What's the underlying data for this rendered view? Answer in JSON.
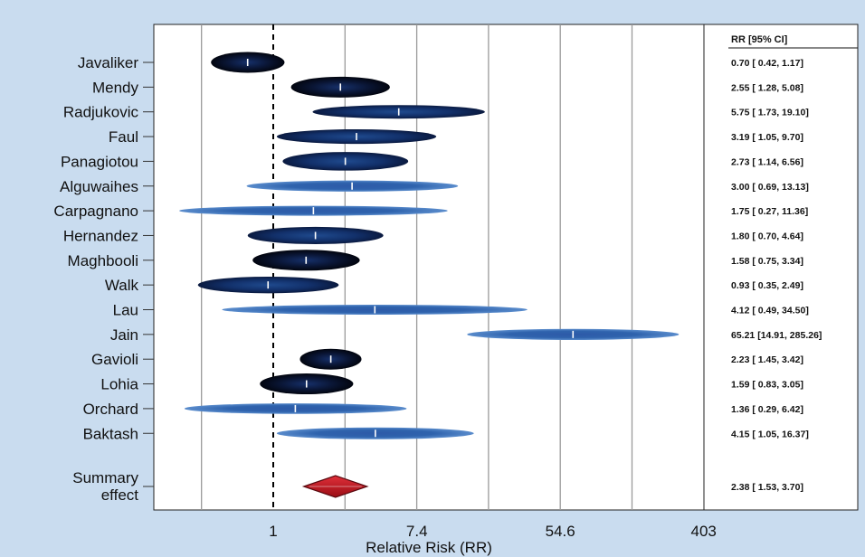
{
  "chart_data": {
    "type": "forest",
    "xlabel": "Relative Risk (RR)",
    "x_scale": "log",
    "x_ticks": [
      "1",
      "7.4",
      "54.6",
      "403"
    ],
    "table_header": "RR [95% CI]",
    "studies": [
      {
        "name": "Javaliker",
        "rr": 0.7,
        "lo": 0.42,
        "hi": 1.17,
        "ci_text": "0.70 [ 0.42,   1.17]"
      },
      {
        "name": "Mendy",
        "rr": 2.55,
        "lo": 1.28,
        "hi": 5.08,
        "ci_text": "2.55 [ 1.28,   5.08]"
      },
      {
        "name": "Radjukovic",
        "rr": 5.75,
        "lo": 1.73,
        "hi": 19.1,
        "ci_text": "5.75 [ 1.73,  19.10]"
      },
      {
        "name": "Faul",
        "rr": 3.19,
        "lo": 1.05,
        "hi": 9.7,
        "ci_text": "3.19 [ 1.05,   9.70]"
      },
      {
        "name": "Panagiotou",
        "rr": 2.73,
        "lo": 1.14,
        "hi": 6.56,
        "ci_text": "2.73 [ 1.14,   6.56]"
      },
      {
        "name": "Alguwaihes",
        "rr": 3.0,
        "lo": 0.69,
        "hi": 13.13,
        "ci_text": "3.00 [ 0.69,  13.13]"
      },
      {
        "name": "Carpagnano",
        "rr": 1.75,
        "lo": 0.27,
        "hi": 11.36,
        "ci_text": "1.75 [ 0.27,  11.36]"
      },
      {
        "name": "Hernandez",
        "rr": 1.8,
        "lo": 0.7,
        "hi": 4.64,
        "ci_text": "1.80 [ 0.70,   4.64]"
      },
      {
        "name": "Maghbooli",
        "rr": 1.58,
        "lo": 0.75,
        "hi": 3.34,
        "ci_text": "1.58 [ 0.75,   3.34]"
      },
      {
        "name": "Walk",
        "rr": 0.93,
        "lo": 0.35,
        "hi": 2.49,
        "ci_text": "0.93 [ 0.35,   2.49]"
      },
      {
        "name": "Lau",
        "rr": 4.12,
        "lo": 0.49,
        "hi": 34.5,
        "ci_text": "4.12 [ 0.49,  34.50]"
      },
      {
        "name": "Jain",
        "rr": 65.21,
        "lo": 14.91,
        "hi": 285.26,
        "ci_text": "65.21 [14.91, 285.26]"
      },
      {
        "name": "Gavioli",
        "rr": 2.23,
        "lo": 1.45,
        "hi": 3.42,
        "ci_text": "2.23 [ 1.45,   3.42]"
      },
      {
        "name": "Lohia",
        "rr": 1.59,
        "lo": 0.83,
        "hi": 3.05,
        "ci_text": "1.59 [ 0.83,   3.05]"
      },
      {
        "name": "Orchard",
        "rr": 1.36,
        "lo": 0.29,
        "hi": 6.42,
        "ci_text": "1.36 [ 0.29,   6.42]"
      },
      {
        "name": "Baktash",
        "rr": 4.15,
        "lo": 1.05,
        "hi": 16.37,
        "ci_text": "4.15 [ 1.05,  16.37]"
      }
    ],
    "summary": {
      "name_lines": [
        "Summary",
        "effect"
      ],
      "rr": 2.38,
      "lo": 1.53,
      "hi": 3.7,
      "ci_text": "2.38 [ 1.53,   3.70]"
    },
    "colors": {
      "background": "#c9dcef",
      "panel": "#ffffff",
      "study_dark": "#050b1e",
      "study_blue": "#3b6fb6",
      "summary_fill": "#c8141e",
      "summary_edge": "#5a0a10",
      "reference_line": "#000000"
    },
    "grid": true
  }
}
